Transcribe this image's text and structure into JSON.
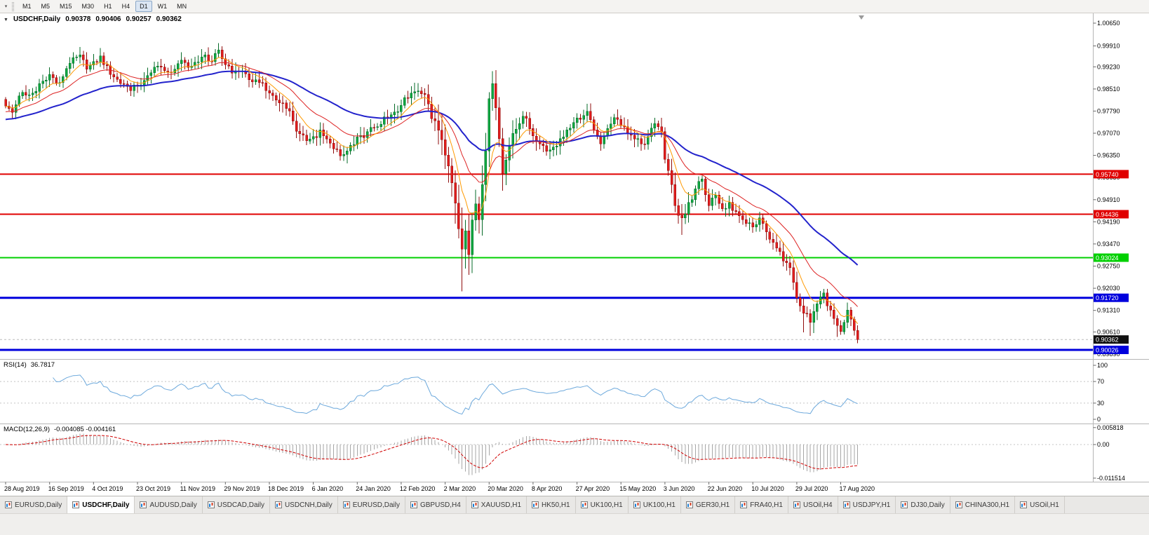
{
  "toolbar": {
    "overflow_icon": "▾",
    "timeframes": [
      {
        "label": "M1",
        "active": false
      },
      {
        "label": "M5",
        "active": false
      },
      {
        "label": "M15",
        "active": false
      },
      {
        "label": "M30",
        "active": false
      },
      {
        "label": "H1",
        "active": false
      },
      {
        "label": "H4",
        "active": false
      },
      {
        "label": "D1",
        "active": true
      },
      {
        "label": "W1",
        "active": false
      },
      {
        "label": "MN",
        "active": false
      }
    ]
  },
  "chart": {
    "title_icon": "▼",
    "title_symbol": "USDCHF,Daily",
    "ohlc": {
      "open": "0.90378",
      "high": "0.90406",
      "low": "0.90257",
      "close": "0.90362"
    },
    "price_axis_labels": [
      "1.00650",
      "0.99910",
      "0.99230",
      "0.98510",
      "0.97790",
      "0.97070",
      "0.96350",
      "0.95630",
      "0.94910",
      "0.94190",
      "0.93470",
      "0.92750",
      "0.92030",
      "0.91310",
      "0.90610",
      "0.89890"
    ],
    "hlines": [
      {
        "value": 0.9574,
        "label": "0.95740",
        "color": "#e00000",
        "width": 2
      },
      {
        "value": 0.94436,
        "label": "0.94436",
        "color": "#e00000",
        "width": 2
      },
      {
        "value": 0.93024,
        "label": "0.93024",
        "color": "#00d000",
        "width": 2
      },
      {
        "value": 0.9172,
        "label": "0.91720",
        "color": "#0000dd",
        "width": 3
      },
      {
        "value": 0.90026,
        "label": "0.90026",
        "color": "#0000dd",
        "width": 3
      }
    ],
    "current_price": {
      "value": 0.90362,
      "label": "0.90362",
      "badge_bg": "#111111",
      "badge_fg": "#ffffff"
    },
    "date_labels": [
      "28 Aug 2019",
      "16 Sep 2019",
      "4 Oct 2019",
      "23 Oct 2019",
      "11 Nov 2019",
      "29 Nov 2019",
      "18 Dec 2019",
      "6 Jan 2020",
      "24 Jan 2020",
      "12 Feb 2020",
      "2 Mar 2020",
      "20 Mar 2020",
      "8 Apr 2020",
      "27 Apr 2020",
      "15 May 2020",
      "3 Jun 2020",
      "22 Jun 2020",
      "10 Jul 2020",
      "29 Jul 2020",
      "17 Aug 2020"
    ]
  },
  "rsi": {
    "label": "RSI(14)",
    "value": "36.7817",
    "axis_labels": [
      "100",
      "70",
      "30",
      "0"
    ],
    "levels": [
      70,
      30
    ]
  },
  "macd": {
    "label": "MACD(12,26,9)",
    "values": "-0.004085 -0.004161",
    "axis": [
      {
        "label": "0.005818",
        "value": 0.005818
      },
      {
        "label": "0.00",
        "value": 0
      },
      {
        "label": "-0.011514",
        "value": -0.011514
      }
    ]
  },
  "tabs": [
    {
      "label": "EURUSD,Daily",
      "active": false
    },
    {
      "label": "USDCHF,Daily",
      "active": true
    },
    {
      "label": "AUDUSD,Daily",
      "active": false
    },
    {
      "label": "USDCAD,Daily",
      "active": false
    },
    {
      "label": "USDCNH,Daily",
      "active": false
    },
    {
      "label": "EURUSD,Daily",
      "active": false
    },
    {
      "label": "GBPUSD,H4",
      "active": false
    },
    {
      "label": "XAUUSD,H1",
      "active": false
    },
    {
      "label": "HK50,H1",
      "active": false
    },
    {
      "label": "UK100,H1",
      "active": false
    },
    {
      "label": "UK100,H1",
      "active": false
    },
    {
      "label": "GER30,H1",
      "active": false
    },
    {
      "label": "FRA40,H1",
      "active": false
    },
    {
      "label": "USOil,H4",
      "active": false
    },
    {
      "label": "USDJPY,H1",
      "active": false
    },
    {
      "label": "DJ30,Daily",
      "active": false
    },
    {
      "label": "CHINA300,H1",
      "active": false
    },
    {
      "label": "USOil,H1",
      "active": false
    }
  ],
  "chart_data": {
    "type": "candlestick+indicators",
    "symbol": "USDCHF",
    "timeframe": "Daily",
    "x_range": [
      "28 Aug 2019",
      "25 Aug 2020"
    ],
    "price_range_visible": [
      0.8973,
      1.0097
    ],
    "bars": 253,
    "last_bar": {
      "open": 0.90378,
      "high": 0.90406,
      "low": 0.90257,
      "close": 0.90362
    },
    "horizontal_levels": [
      0.9574,
      0.94436,
      0.93024,
      0.9172,
      0.90026
    ],
    "close_anchors": [
      [
        0,
        0.9795
      ],
      [
        2,
        0.9775
      ],
      [
        5,
        0.984
      ],
      [
        8,
        0.9838
      ],
      [
        10,
        0.9868
      ],
      [
        13,
        0.9898
      ],
      [
        16,
        0.9872
      ],
      [
        19,
        0.9935
      ],
      [
        22,
        0.9962
      ],
      [
        24,
        0.9915
      ],
      [
        26,
        0.994
      ],
      [
        28,
        0.9958
      ],
      [
        31,
        0.9898
      ],
      [
        34,
        0.9868
      ],
      [
        37,
        0.9846
      ],
      [
        39,
        0.986
      ],
      [
        42,
        0.9895
      ],
      [
        45,
        0.9925
      ],
      [
        48,
        0.9906
      ],
      [
        52,
        0.9945
      ],
      [
        55,
        0.9926
      ],
      [
        58,
        0.9955
      ],
      [
        61,
        0.994
      ],
      [
        63,
        0.9978
      ],
      [
        65,
        0.993
      ],
      [
        68,
        0.991
      ],
      [
        71,
        0.99
      ],
      [
        75,
        0.9872
      ],
      [
        78,
        0.9838
      ],
      [
        81,
        0.9806
      ],
      [
        83,
        0.9788
      ],
      [
        85,
        0.9746
      ],
      [
        87,
        0.9706
      ],
      [
        89,
        0.9682
      ],
      [
        91,
        0.9696
      ],
      [
        93,
        0.9718
      ],
      [
        95,
        0.9688
      ],
      [
        97,
        0.9656
      ],
      [
        100,
        0.9638
      ],
      [
        102,
        0.9668
      ],
      [
        104,
        0.9695
      ],
      [
        107,
        0.9712
      ],
      [
        110,
        0.9728
      ],
      [
        113,
        0.9758
      ],
      [
        115,
        0.9776
      ],
      [
        117,
        0.9798
      ],
      [
        119,
        0.9822
      ],
      [
        121,
        0.9842
      ],
      [
        123,
        0.9836
      ],
      [
        125,
        0.9802
      ],
      [
        127,
        0.9748
      ],
      [
        129,
        0.9686
      ],
      [
        131,
        0.96
      ],
      [
        132,
        0.9546
      ],
      [
        133,
        0.948
      ],
      [
        134,
        0.9396
      ],
      [
        135,
        0.933
      ],
      [
        136,
        0.939
      ],
      [
        137,
        0.9312
      ],
      [
        138,
        0.9425
      ],
      [
        139,
        0.9478
      ],
      [
        140,
        0.9426
      ],
      [
        141,
        0.954
      ],
      [
        142,
        0.965
      ],
      [
        143,
        0.982
      ],
      [
        144,
        0.9868
      ],
      [
        145,
        0.979
      ],
      [
        146,
        0.969
      ],
      [
        147,
        0.9576
      ],
      [
        148,
        0.962
      ],
      [
        149,
        0.9664
      ],
      [
        151,
        0.972
      ],
      [
        153,
        0.9762
      ],
      [
        155,
        0.9722
      ],
      [
        156,
        0.9698
      ],
      [
        158,
        0.9672
      ],
      [
        160,
        0.9648
      ],
      [
        162,
        0.9662
      ],
      [
        164,
        0.969
      ],
      [
        166,
        0.9718
      ],
      [
        168,
        0.9742
      ],
      [
        170,
        0.9752
      ],
      [
        172,
        0.9778
      ],
      [
        174,
        0.9718
      ],
      [
        176,
        0.9672
      ],
      [
        178,
        0.9722
      ],
      [
        180,
        0.9758
      ],
      [
        182,
        0.9732
      ],
      [
        184,
        0.9706
      ],
      [
        186,
        0.9688
      ],
      [
        188,
        0.9672
      ],
      [
        190,
        0.9696
      ],
      [
        192,
        0.9738
      ],
      [
        194,
        0.9712
      ],
      [
        195,
        0.9622
      ],
      [
        196,
        0.9586
      ],
      [
        197,
        0.954
      ],
      [
        198,
        0.9472
      ],
      [
        200,
        0.9432
      ],
      [
        202,
        0.9482
      ],
      [
        204,
        0.9526
      ],
      [
        206,
        0.9558
      ],
      [
        208,
        0.9472
      ],
      [
        210,
        0.9506
      ],
      [
        212,
        0.9462
      ],
      [
        214,
        0.9482
      ],
      [
        216,
        0.9452
      ],
      [
        218,
        0.9426
      ],
      [
        221,
        0.9402
      ],
      [
        223,
        0.9432
      ],
      [
        225,
        0.9386
      ],
      [
        227,
        0.9352
      ],
      [
        229,
        0.9322
      ],
      [
        231,
        0.9286
      ],
      [
        233,
        0.9222
      ],
      [
        234,
        0.9172
      ],
      [
        236,
        0.9122
      ],
      [
        238,
        0.9092
      ],
      [
        240,
        0.9152
      ],
      [
        242,
        0.9188
      ],
      [
        244,
        0.9132
      ],
      [
        246,
        0.9082
      ],
      [
        247,
        0.9062
      ],
      [
        248,
        0.9092
      ],
      [
        249,
        0.9132
      ],
      [
        250,
        0.9102
      ],
      [
        251,
        0.9066
      ],
      [
        252,
        0.90362
      ]
    ],
    "vol_anchors": [
      [
        0,
        0.0038
      ],
      [
        60,
        0.0042
      ],
      [
        85,
        0.0052
      ],
      [
        120,
        0.0042
      ],
      [
        126,
        0.0078
      ],
      [
        132,
        0.0108
      ],
      [
        138,
        0.0115
      ],
      [
        144,
        0.0095
      ],
      [
        148,
        0.0075
      ],
      [
        155,
        0.0052
      ],
      [
        170,
        0.0042
      ],
      [
        193,
        0.0045
      ],
      [
        198,
        0.0065
      ],
      [
        204,
        0.005
      ],
      [
        220,
        0.004
      ],
      [
        232,
        0.0054
      ],
      [
        238,
        0.0058
      ],
      [
        244,
        0.0046
      ],
      [
        252,
        0.004
      ]
    ],
    "spikes": [
      {
        "bar": 22,
        "high": 0.9988
      },
      {
        "bar": 28,
        "high": 0.9984
      },
      {
        "bar": 63,
        "high": 0.9998
      },
      {
        "bar": 135,
        "low": 0.9193
      },
      {
        "bar": 137,
        "low": 0.9246
      },
      {
        "bar": 144,
        "high": 0.9904
      },
      {
        "bar": 147,
        "low": 0.952
      },
      {
        "bar": 200,
        "low": 0.9376
      },
      {
        "bar": 236,
        "low": 0.906
      },
      {
        "bar": 238,
        "low": 0.9048
      },
      {
        "bar": 246,
        "low": 0.9045
      },
      {
        "bar": 252,
        "low": 0.9026
      }
    ],
    "indicators": {
      "moving_averages": [
        {
          "period": 8,
          "color": "#ff9900"
        },
        {
          "period": 20,
          "color": "#dd2222"
        },
        {
          "period": 50,
          "color": "#2323cc"
        }
      ],
      "rsi": {
        "period": 14,
        "current": 36.7817,
        "levels": [
          70,
          30
        ],
        "scale": [
          0,
          100
        ]
      },
      "macd": {
        "fast": 12,
        "slow": 26,
        "signal": 9,
        "current_macd": -0.004085,
        "current_signal": -0.004161,
        "scale_max": 0.005818,
        "scale_min": -0.011514
      }
    },
    "style": {
      "up": "#0fa841",
      "up_edge": "#066b28",
      "down": "#e11d1d",
      "down_edge": "#8f0d0d",
      "ma_fast": "#ff9900",
      "ma_mid": "#dd2222",
      "ma_slow": "#2323cc",
      "rsi_line": "#6da9dc",
      "macd_hist": "#a6a6a6",
      "macd_signal": "#d00000"
    }
  }
}
